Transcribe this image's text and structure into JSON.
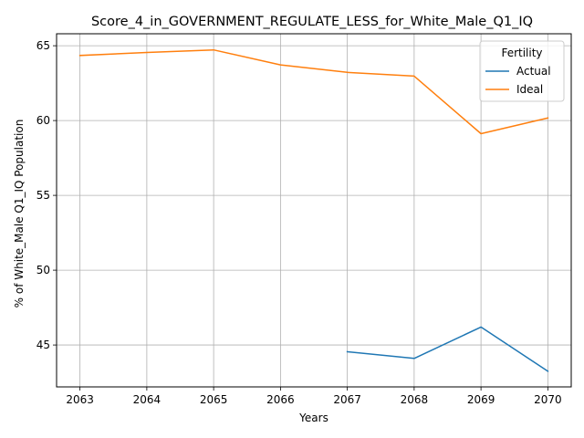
{
  "chart_data": {
    "type": "line",
    "title": "Score_4_in_GOVERNMENT_REGULATE_LESS_for_White_Male_Q1_IQ",
    "xlabel": "Years",
    "ylabel": "% of White_Male Q1_IQ Population",
    "x": [
      2063,
      2064,
      2065,
      2066,
      2067,
      2068,
      2069,
      2070
    ],
    "xlim": [
      2062.65,
      2070.35
    ],
    "ylim": [
      42.2,
      65.8
    ],
    "yticks": [
      45,
      50,
      55,
      60,
      65
    ],
    "grid": true,
    "legend": {
      "title": "Fertility",
      "position": "top-right"
    },
    "series": [
      {
        "name": "Actual",
        "color": "#1f77b4",
        "values": [
          null,
          null,
          null,
          null,
          44.55,
          44.1,
          46.2,
          43.25
        ]
      },
      {
        "name": "Ideal",
        "color": "#ff7f0e",
        "values": [
          64.35,
          64.55,
          64.72,
          63.72,
          63.22,
          62.97,
          59.12,
          60.17
        ]
      }
    ]
  }
}
